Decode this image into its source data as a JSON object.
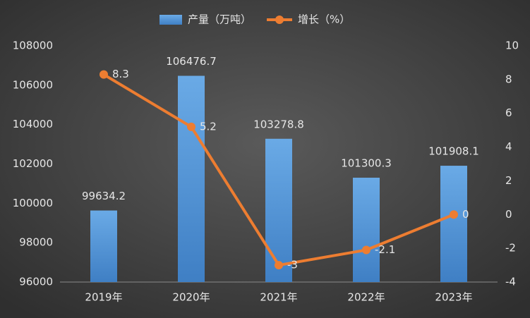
{
  "chart_data": {
    "type": "combo",
    "categories": [
      "2019年",
      "2020年",
      "2021年",
      "2022年",
      "2023年"
    ],
    "series": [
      {
        "name": "产量（万吨）",
        "type": "bar",
        "color": "#5b9bd5",
        "values": [
          99634.2,
          106476.7,
          103278.8,
          101300.3,
          101908.1
        ]
      },
      {
        "name": "增长（%）",
        "type": "line",
        "axis": "y2",
        "color": "#ed7d31",
        "values": [
          8.3,
          5.2,
          -3,
          -2.1,
          0
        ]
      }
    ],
    "ylim": [
      96000,
      108000
    ],
    "yticks": [
      96000,
      98000,
      100000,
      102000,
      104000,
      106000,
      108000
    ],
    "y2lim": [
      -4,
      10
    ],
    "y2ticks": [
      -4,
      -2,
      0,
      2,
      4,
      6,
      8,
      10
    ],
    "grid": false,
    "legend": "top"
  }
}
